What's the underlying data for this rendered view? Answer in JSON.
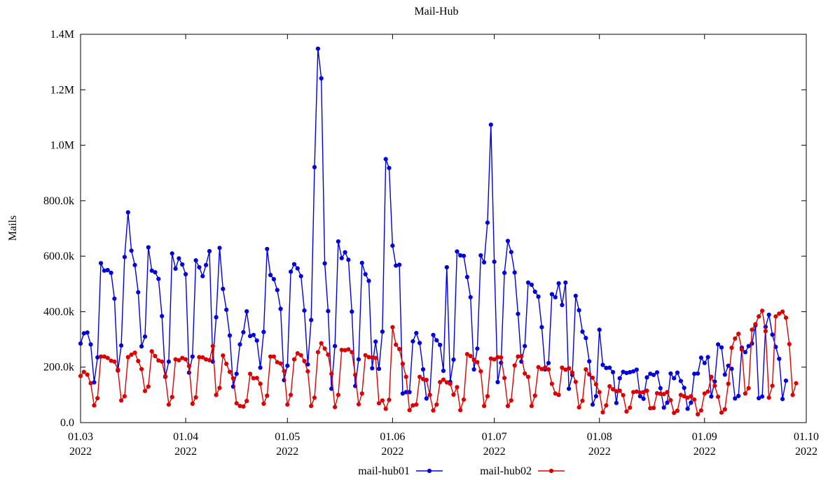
{
  "chart_data": {
    "type": "line",
    "title": "Mail-Hub",
    "ylabel": "Mails",
    "xlabel": "",
    "ylim": [
      0,
      1400000
    ],
    "y_ticks": [
      {
        "value": 0,
        "label": "0.0"
      },
      {
        "value": 200000,
        "label": "200.0k"
      },
      {
        "value": 400000,
        "label": "400.0k"
      },
      {
        "value": 600000,
        "label": "600.0k"
      },
      {
        "value": 800000,
        "label": "800.0k"
      },
      {
        "value": 1000000,
        "label": "1.0M"
      },
      {
        "value": 1200000,
        "label": "1.2M"
      },
      {
        "value": 1400000,
        "label": "1.4M"
      }
    ],
    "xlim": [
      "2022-03-01",
      "2022-10-01"
    ],
    "x_ticks": [
      {
        "date": "2022-03-01",
        "label": "01.03",
        "year": "2022"
      },
      {
        "date": "2022-04-01",
        "label": "01.04",
        "year": "2022"
      },
      {
        "date": "2022-05-01",
        "label": "01.05",
        "year": "2022"
      },
      {
        "date": "2022-06-01",
        "label": "01.06",
        "year": "2022"
      },
      {
        "date": "2022-07-01",
        "label": "01.07",
        "year": "2022"
      },
      {
        "date": "2022-08-01",
        "label": "01.08",
        "year": "2022"
      },
      {
        "date": "2022-09-01",
        "label": "01.09",
        "year": "2022"
      },
      {
        "date": "2022-10-01",
        "label": "01.10",
        "year": "2022"
      }
    ],
    "x_start": "2022-03-01",
    "x_step_days": 1,
    "grid": false,
    "legend_position": "bottom",
    "series": [
      {
        "name": "mail-hub01",
        "color": "#0000dd",
        "values": [
          285000,
          322000,
          325000,
          282000,
          145000,
          235000,
          575000,
          548000,
          550000,
          540000,
          447000,
          188000,
          278000,
          597000,
          758000,
          620000,
          568000,
          470000,
          275000,
          310000,
          632000,
          548000,
          542000,
          518000,
          384000,
          165000,
          220000,
          610000,
          555000,
          592000,
          570000,
          535000,
          180000,
          238000,
          585000,
          560000,
          528000,
          568000,
          618000,
          220000,
          380000,
          630000,
          482000,
          407000,
          314000,
          130000,
          176000,
          282000,
          326000,
          401000,
          312000,
          316000,
          296000,
          198000,
          327000,
          626000,
          532000,
          517000,
          478000,
          410000,
          153000,
          205000,
          544000,
          571000,
          556000,
          528000,
          404000,
          210000,
          370000,
          921000,
          1348000,
          1241000,
          574000,
          402000,
          122000,
          276000,
          653000,
          593000,
          614000,
          587000,
          400000,
          132000,
          228000,
          576000,
          535000,
          511000,
          196000,
          292000,
          194000,
          328000,
          950000,
          918000,
          638000,
          566000,
          569000,
          105000,
          110000,
          110000,
          293000,
          323000,
          287000,
          192000,
          87000,
          100000,
          316000,
          297000,
          280000,
          187000,
          560000,
          147000,
          227000,
          617000,
          603000,
          601000,
          525000,
          452000,
          192000,
          267000,
          603000,
          578000,
          721000,
          1074000,
          580000,
          146000,
          216000,
          540000,
          655000,
          615000,
          541000,
          392000,
          220000,
          276000,
          505000,
          497000,
          472000,
          454000,
          344000,
          192000,
          215000,
          463000,
          452000,
          502000,
          424000,
          505000,
          122000,
          172000,
          457000,
          405000,
          328000,
          305000,
          221000,
          65000,
          95000,
          335000,
          208000,
          197000,
          198000,
          182000,
          71000,
          160000,
          183000,
          179000,
          182000,
          185000,
          191000,
          95000,
          86000,
          163000,
          176000,
          172000,
          181000,
          124000,
          54000,
          72000,
          177000,
          160000,
          180000,
          150000,
          125000,
          50000,
          72000,
          176000,
          177000,
          234000,
          215000,
          236000,
          94000,
          148000,
          282000,
          271000,
          173000,
          205000,
          194000,
          87000,
          96000,
          270000,
          254000,
          276000,
          285000,
          351000,
          88000,
          94000,
          345000,
          389000,
          317000,
          273000,
          230000,
          85000,
          151000
        ]
      },
      {
        "name": "mail-hub02",
        "color": "#dd0000",
        "values": [
          168000,
          183000,
          173000,
          142000,
          62000,
          88000,
          238000,
          238000,
          233000,
          223000,
          220000,
          191000,
          80000,
          95000,
          236000,
          245000,
          252000,
          222000,
          193000,
          114000,
          130000,
          257000,
          240000,
          224000,
          220000,
          167000,
          65000,
          92000,
          228000,
          225000,
          233000,
          228000,
          204000,
          68000,
          91000,
          236000,
          235000,
          228000,
          225000,
          276000,
          100000,
          125000,
          242000,
          212000,
          183000,
          160000,
          70000,
          60000,
          58000,
          78000,
          176000,
          160000,
          161000,
          140000,
          68000,
          97000,
          238000,
          238000,
          218000,
          213000,
          186000,
          65000,
          100000,
          228000,
          250000,
          243000,
          222000,
          185000,
          60000,
          90000,
          254000,
          286000,
          267000,
          245000,
          176000,
          56000,
          100000,
          262000,
          261000,
          264000,
          254000,
          172000,
          66000,
          105000,
          243000,
          236000,
          235000,
          233000,
          70000,
          80000,
          50000,
          82000,
          344000,
          281000,
          265000,
          212000,
          165000,
          45000,
          62000,
          65000,
          165000,
          157000,
          154000,
          100000,
          44000,
          65000,
          146000,
          155000,
          145000,
          140000,
          101000,
          128000,
          45000,
          83000,
          247000,
          240000,
          226000,
          218000,
          185000,
          60000,
          95000,
          231000,
          228000,
          236000,
          235000,
          161000,
          60000,
          80000,
          206000,
          238000,
          240000,
          177000,
          165000,
          60000,
          97000,
          200000,
          193000,
          198000,
          192000,
          140000,
          105000,
          100000,
          198000,
          191000,
          196000,
          180000,
          147000,
          55000,
          79000,
          192000,
          174000,
          162000,
          138000,
          110000,
          37000,
          62000,
          131000,
          120000,
          113000,
          115000,
          99000,
          40000,
          54000,
          110000,
          112000,
          108000,
          110000,
          115000,
          52000,
          53000,
          106000,
          104000,
          103000,
          110000,
          81000,
          35000,
          43000,
          100000,
          95000,
          90000,
          95000,
          83000,
          30000,
          44000,
          105000,
          112000,
          165000,
          133000,
          93000,
          36000,
          48000,
          140000,
          270000,
          303000,
          320000,
          263000,
          105000,
          124000,
          335000,
          355000,
          383000,
          403000,
          330000,
          90000,
          133000,
          383000,
          393000,
          400000,
          378000,
          283000,
          100000,
          142000
        ]
      }
    ]
  }
}
